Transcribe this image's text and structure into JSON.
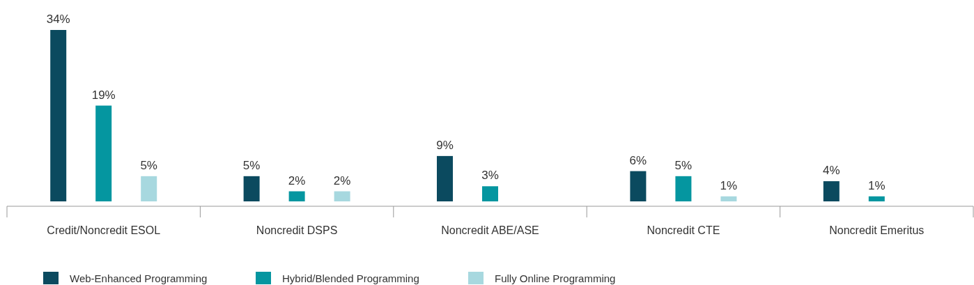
{
  "chart_data": {
    "type": "bar",
    "categories": [
      "Credit/Noncredit ESOL",
      "Noncredit DSPS",
      "Noncredit ABE/ASE",
      "Noncredit CTE",
      "Noncredit Emeritus"
    ],
    "series": [
      {
        "name": "Web-Enhanced Programming",
        "color": "#0b4a5f",
        "values": [
          34,
          5,
          9,
          6,
          4
        ],
        "value_labels": [
          "34%",
          "5%",
          "9%",
          "6%",
          "4%"
        ]
      },
      {
        "name": "Hybrid/Blended Programming",
        "color": "#0596a0",
        "values": [
          19,
          2,
          3,
          5,
          1
        ],
        "value_labels": [
          "19%",
          "2%",
          "3%",
          "5%",
          "1%"
        ]
      },
      {
        "name": "Fully Online Programming",
        "color": "#a7d8df",
        "values": [
          5,
          2,
          null,
          1,
          null
        ],
        "value_labels": [
          "5%",
          "2%",
          null,
          "1%",
          null
        ]
      }
    ],
    "legend": "bottom"
  }
}
